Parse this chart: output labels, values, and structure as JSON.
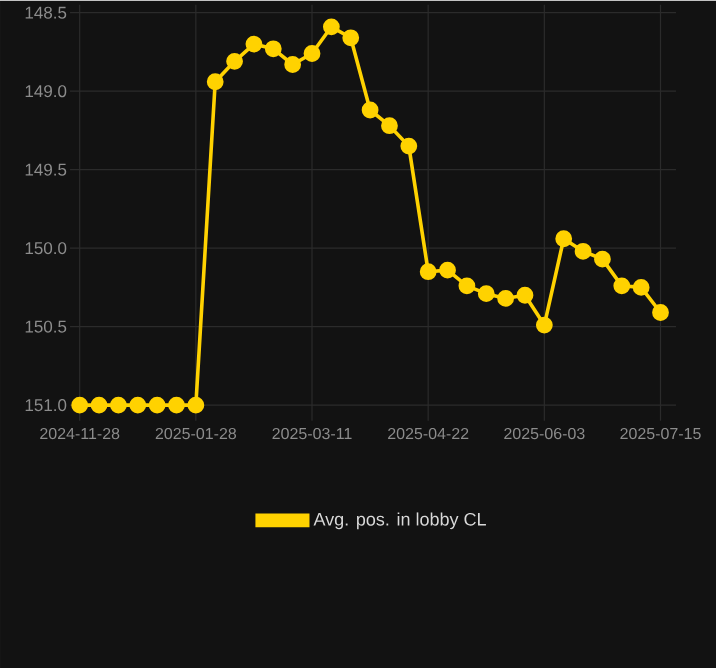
{
  "chart_data": {
    "type": "line",
    "categories": [
      "2024-11-28",
      null,
      null,
      null,
      null,
      null,
      "2025-01-28",
      null,
      null,
      null,
      null,
      null,
      "2025-03-11",
      null,
      null,
      null,
      null,
      null,
      "2025-04-22",
      null,
      null,
      null,
      null,
      null,
      "2025-06-03",
      null,
      null,
      null,
      null,
      null,
      "2025-07-15"
    ],
    "series": [
      {
        "name": "Avg. pos. in lobby CL",
        "color": "#ffd200",
        "values": [
          151.0,
          151.0,
          151.0,
          151.0,
          151.0,
          151.0,
          151.0,
          148.94,
          148.81,
          148.7,
          148.73,
          148.83,
          148.76,
          148.59,
          148.66,
          149.12,
          149.22,
          149.35,
          150.15,
          150.14,
          150.24,
          150.29,
          150.32,
          150.3,
          150.49,
          149.94,
          150.02,
          150.07,
          150.24,
          150.25,
          150.41
        ]
      }
    ],
    "ylim": [
      151.1,
      148.45
    ],
    "yticks": [
      148.5,
      {
        "value": 149.0,
        "label": "149.0"
      },
      149.5,
      {
        "value": 150.0,
        "label": "150.0"
      },
      150.5,
      {
        "value": 151.0,
        "label": "151.0"
      }
    ],
    "grid": true,
    "legend": "bottom",
    "marker": "circle",
    "line_style": "solid"
  }
}
